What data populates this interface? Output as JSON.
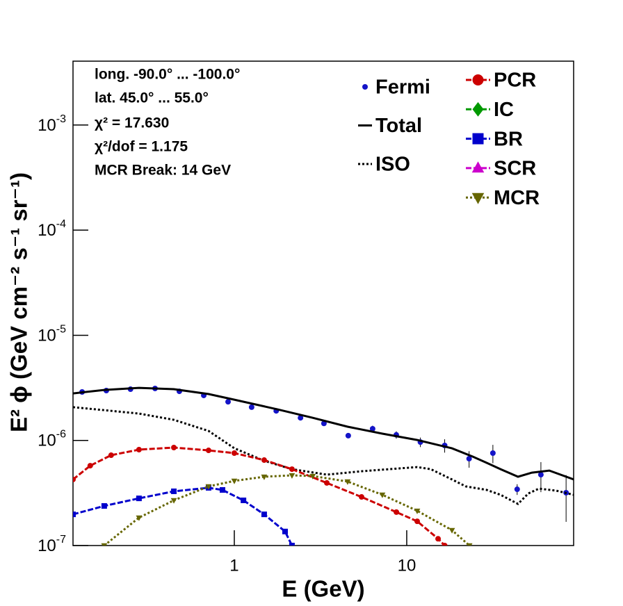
{
  "chart_data": {
    "type": "line",
    "log_x": true,
    "log_y": true,
    "annotations": [
      "long. -90.0° ... -100.0°",
      "lat. 45.0° ... 55.0°",
      "χ² = 17.630",
      "χ²/dof = 1.175",
      "MCR Break: 14 GeV"
    ],
    "x_label": "E (GeV)",
    "y_label": "E² ϕ (GeV cm⁻² s⁻¹ sr⁻¹)",
    "xlim": [
      0.116,
      92.9
    ],
    "ylim": [
      1e-07,
      0.00405
    ],
    "xticks": [
      1,
      10
    ],
    "yticks": [
      {
        "value": 1e-07,
        "label": "10",
        "exponent": "-7"
      },
      {
        "value": 1e-06,
        "label": "10",
        "exponent": "-6"
      },
      {
        "value": 1e-05,
        "label": "10",
        "exponent": "-5"
      },
      {
        "value": 0.0001,
        "label": "10",
        "exponent": "-4"
      },
      {
        "value": 0.001,
        "label": "10",
        "exponent": "-3"
      }
    ],
    "series": [
      {
        "name": "Fermi",
        "color": "#1414c8",
        "style": "points",
        "x": [
          0.131,
          0.181,
          0.25,
          0.347,
          0.48,
          0.665,
          0.92,
          1.26,
          1.75,
          2.42,
          3.31,
          4.58,
          6.34,
          8.7,
          12.0,
          16.6,
          23.0,
          31.6,
          43.7,
          60.0,
          84.0
        ],
        "values": [
          2.89e-06,
          2.98e-06,
          3.07e-06,
          3.12e-06,
          2.93e-06,
          2.68e-06,
          2.33e-06,
          2.07e-06,
          1.91e-06,
          1.64e-06,
          1.45e-06,
          1.11e-06,
          1.29e-06,
          1.13e-06,
          9.64e-07,
          8.95e-07,
          6.7e-07,
          7.57e-07,
          3.43e-07,
          4.72e-07,
          3.18e-07
        ],
        "errors": [
          1e-07,
          1e-07,
          1e-07,
          1e-07,
          9e-08,
          8e-08,
          7e-08,
          6e-08,
          6e-08,
          6e-08,
          6e-08,
          6e-08,
          9e-08,
          9e-08,
          1e-07,
          1.3e-07,
          1.2e-07,
          1.5e-07,
          4e-08,
          1.5e-07,
          1.5e-07
        ]
      },
      {
        "name": "Total",
        "color": "#000000",
        "style": "solid",
        "x": [
          0.116,
          0.176,
          0.28,
          0.446,
          0.709,
          1.0,
          1.79,
          2.85,
          4.54,
          7.22,
          11.5,
          18.3,
          24.2,
          29.1,
          35.0,
          44.2,
          53.2,
          67.1,
          92.9
        ],
        "values": [
          2.8e-06,
          3.02e-06,
          3.16e-06,
          3.07e-06,
          2.76e-06,
          2.44e-06,
          1.97e-06,
          1.64e-06,
          1.35e-06,
          1.16e-06,
          1.01e-06,
          8.41e-07,
          7.01e-07,
          6.12e-07,
          5.33e-07,
          4.51e-07,
          4.94e-07,
          5.17e-07,
          4.25e-07
        ]
      },
      {
        "name": "ISO",
        "color": "#000000",
        "style": "dotted",
        "x": [
          0.116,
          0.176,
          0.28,
          0.446,
          0.709,
          1.0,
          1.49,
          2.16,
          3.44,
          5.47,
          11.5,
          13.8,
          18.3,
          22.0,
          29.1,
          35.0,
          44.2,
          50.8,
          58.4,
          73.6,
          92.9
        ],
        "values": [
          2.07e-06,
          1.94e-06,
          1.8e-06,
          1.57e-06,
          1.23e-06,
          8.42e-07,
          6.4e-07,
          5.33e-07,
          4.72e-07,
          5.09e-07,
          5.58e-07,
          5.33e-07,
          4.25e-07,
          3.65e-07,
          3.38e-07,
          3.04e-07,
          2.49e-07,
          3.13e-07,
          3.48e-07,
          3.33e-07,
          3.04e-07
        ]
      },
      {
        "name": "PCR",
        "color": "#cc0000",
        "style": "dashed",
        "marker": "circle",
        "x": [
          0.116,
          0.146,
          0.193,
          0.28,
          0.446,
          0.709,
          1.0,
          1.49,
          2.16,
          3.44,
          5.47,
          8.71,
          11.5,
          15.2,
          16.6
        ],
        "values": [
          4.25e-07,
          5.75e-07,
          7.23e-07,
          8.17e-07,
          8.55e-07,
          8.04e-07,
          7.57e-07,
          6.5e-07,
          5.33e-07,
          3.94e-07,
          2.9e-07,
          2.08e-07,
          1.7e-07,
          1.16e-07,
          1e-07
        ]
      },
      {
        "name": "IC",
        "color": "#009900",
        "style": "dashed",
        "marker": "diamond",
        "x": [],
        "values": []
      },
      {
        "name": "BR",
        "color": "#0000cc",
        "style": "dashed",
        "marker": "square",
        "x": [
          0.116,
          0.176,
          0.28,
          0.446,
          0.709,
          0.854,
          1.13,
          1.49,
          1.97,
          2.16
        ],
        "values": [
          1.98e-07,
          2.38e-07,
          2.81e-07,
          3.28e-07,
          3.54e-07,
          3.38e-07,
          2.69e-07,
          1.98e-07,
          1.36e-07,
          1e-07
        ]
      },
      {
        "name": "SCR",
        "color": "#cc00cc",
        "style": "dashed",
        "marker": "triangle-up",
        "x": [],
        "values": []
      },
      {
        "name": "MCR",
        "color": "#666600",
        "style": "dotted",
        "marker": "triangle-down",
        "x": [
          0.176,
          0.28,
          0.446,
          0.709,
          1.0,
          1.49,
          2.16,
          2.85,
          4.54,
          7.22,
          11.5,
          18.3,
          23.1
        ],
        "values": [
          1e-07,
          1.84e-07,
          2.69e-07,
          3.65e-07,
          4.12e-07,
          4.51e-07,
          4.65e-07,
          4.58e-07,
          4.06e-07,
          3.04e-07,
          2.14e-07,
          1.4e-07,
          1e-07
        ]
      }
    ]
  }
}
